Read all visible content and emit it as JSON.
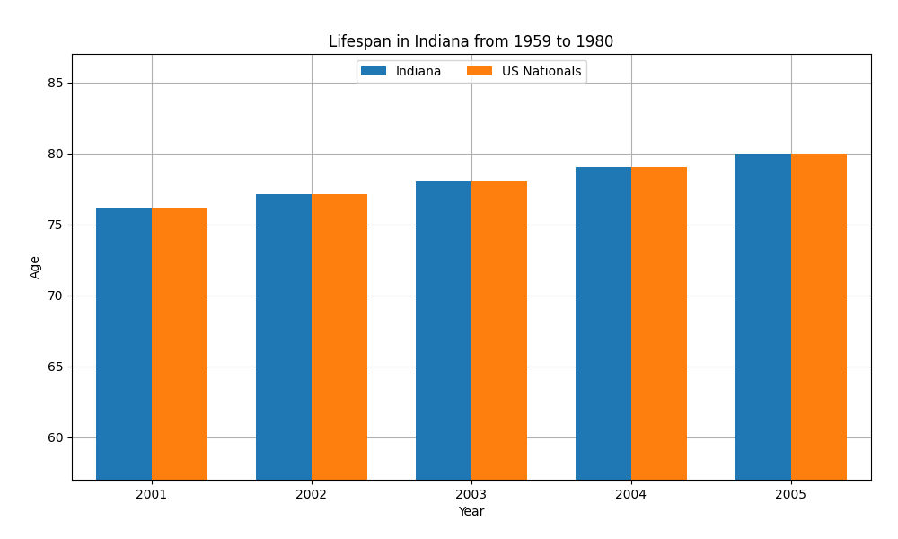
{
  "chart_data": {
    "type": "bar",
    "title": "Lifespan in Indiana from 1959 to 1980",
    "x_label": "Year",
    "y_label": "Age",
    "categories": [
      "2001",
      "2002",
      "2003",
      "2004",
      "2005"
    ],
    "series": [
      {
        "name": "Indiana",
        "values": [
          76.1,
          77.1,
          78.0,
          79.0,
          80.0
        ]
      },
      {
        "name": "US Nationals",
        "values": [
          76.1,
          77.1,
          78.0,
          79.0,
          80.0
        ]
      }
    ],
    "ylim": [
      57,
      87
    ],
    "yticks": [
      60,
      65,
      70,
      75,
      80,
      85
    ],
    "grid": true,
    "legend": "upper center"
  }
}
